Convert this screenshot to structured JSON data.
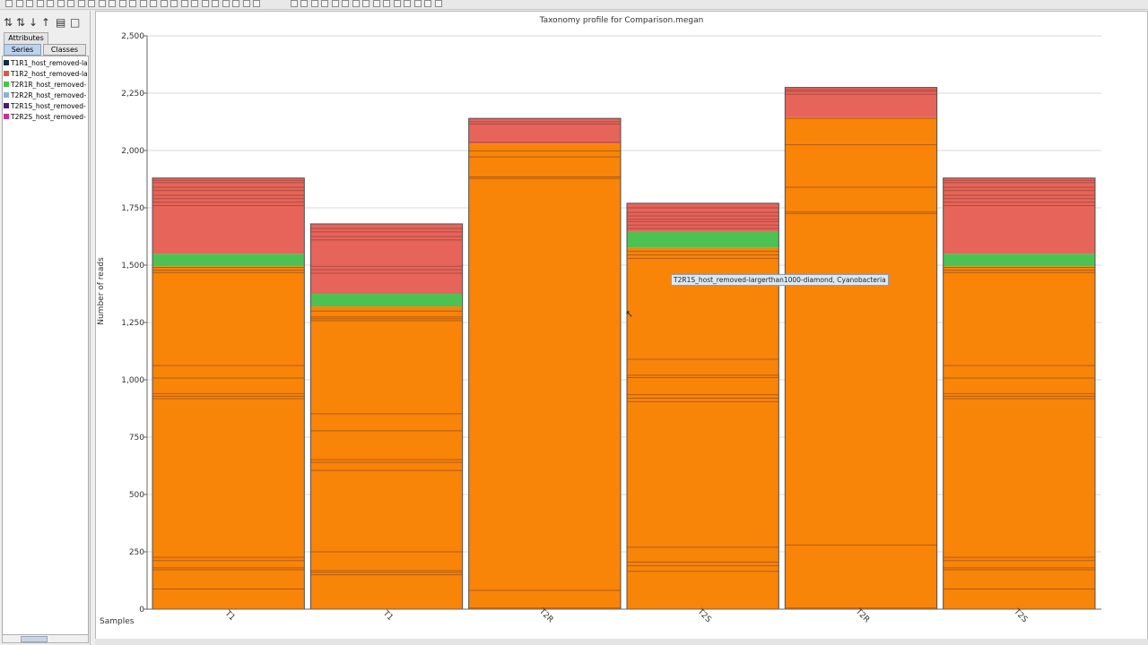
{
  "sidebar": {
    "attributes_tab": "Attributes",
    "series_tab": "Series",
    "classes_tab": "Classes",
    "series": [
      {
        "label": "T1R1_host_removed-la",
        "color": "#14284e"
      },
      {
        "label": "T1R2_host_removed-la",
        "color": "#d85a4c"
      },
      {
        "label": "T2R1R_host_removed-",
        "color": "#4cc24c"
      },
      {
        "label": "T2R2R_host_removed-",
        "color": "#8cb0dc"
      },
      {
        "label": "T2R1S_host_removed-",
        "color": "#4a1c70"
      },
      {
        "label": "T2R2S_host_removed-",
        "color": "#c8308c"
      }
    ]
  },
  "tooltip": {
    "text": "T2R1S_host_removed-largerthan1000-diamond, Cyanobacteria"
  },
  "chart_data": {
    "type": "bar",
    "stacked": true,
    "title": "Taxonomy profile for Comparison.megan",
    "ylabel": "Number of reads",
    "xlabel": "Samples",
    "ylim": [
      0,
      2500
    ],
    "yticks": [
      0,
      250,
      500,
      750,
      1000,
      1250,
      1500,
      1750,
      2000,
      2250,
      2500
    ],
    "ytick_labels": [
      "0",
      "250",
      "500",
      "750",
      "1,000",
      "1,250",
      "1,500",
      "1,750",
      "2,000",
      "2,250",
      "2,500"
    ],
    "grid": true,
    "categories": [
      "T1",
      "T1",
      "T2R",
      "T2S",
      "T2R",
      "T2S"
    ],
    "colors": {
      "orange": "#f88408",
      "green": "#4cc252",
      "red": "#e6645a",
      "divider": "#a85418",
      "divider_red": "#a0443a",
      "frame": "#505050"
    },
    "bars": [
      {
        "label": "T1",
        "total": 1880,
        "segments": [
          {
            "color": "orange",
            "value": 1495
          },
          {
            "color": "green",
            "value": 55
          },
          {
            "color": "red",
            "value": 330
          }
        ],
        "dividers": [
          88,
          172,
          180,
          212,
          226,
          918,
          928,
          940,
          1008,
          1062,
          1468,
          1478,
          1490
        ],
        "red_dividers": [
          1760,
          1775,
          1790,
          1805,
          1825,
          1840,
          1860,
          1870
        ]
      },
      {
        "label": "T1",
        "total": 1680,
        "segments": [
          {
            "color": "orange",
            "value": 1320
          },
          {
            "color": "green",
            "value": 55
          },
          {
            "color": "red",
            "value": 305
          }
        ],
        "dividers": [
          150,
          160,
          168,
          250,
          605,
          640,
          652,
          778,
          852,
          1258,
          1266,
          1274,
          1300
        ],
        "red_dividers": [
          1465,
          1480,
          1495,
          1610,
          1625,
          1645,
          1660
        ]
      },
      {
        "label": "T2R",
        "total": 2140,
        "segments": [
          {
            "color": "orange",
            "value": 2030
          },
          {
            "color": "red",
            "value": 110
          }
        ],
        "dividers": [
          5,
          82,
          1878,
          1885,
          1972,
          1998
        ],
        "red_dividers": [
          2035,
          2115,
          2125
        ]
      },
      {
        "label": "T2S",
        "total": 1770,
        "segments": [
          {
            "color": "orange",
            "value": 1575
          },
          {
            "color": "green",
            "value": 70
          },
          {
            "color": "red",
            "value": 125
          }
        ],
        "dividers": [
          165,
          190,
          205,
          270,
          905,
          920,
          935,
          1010,
          1020,
          1090,
          1530,
          1545,
          1560
        ],
        "red_dividers": [
          1660,
          1675,
          1690,
          1700,
          1715,
          1730,
          1750
        ]
      },
      {
        "label": "T2R",
        "total": 2275,
        "segments": [
          {
            "color": "orange",
            "value": 2145
          },
          {
            "color": "red",
            "value": 130
          }
        ],
        "dividers": [
          5,
          280,
          1725,
          1732,
          1840,
          2025,
          2140
        ],
        "red_dividers": [
          2245,
          2258,
          2265
        ]
      },
      {
        "label": "T2S",
        "total": 1880,
        "segments": [
          {
            "color": "orange",
            "value": 1495
          },
          {
            "color": "green",
            "value": 55
          },
          {
            "color": "red",
            "value": 330
          }
        ],
        "dividers": [
          88,
          172,
          180,
          212,
          226,
          918,
          928,
          940,
          1008,
          1062,
          1468,
          1478,
          1490
        ],
        "red_dividers": [
          1760,
          1775,
          1790,
          1805,
          1825,
          1840,
          1860,
          1870
        ]
      }
    ]
  }
}
